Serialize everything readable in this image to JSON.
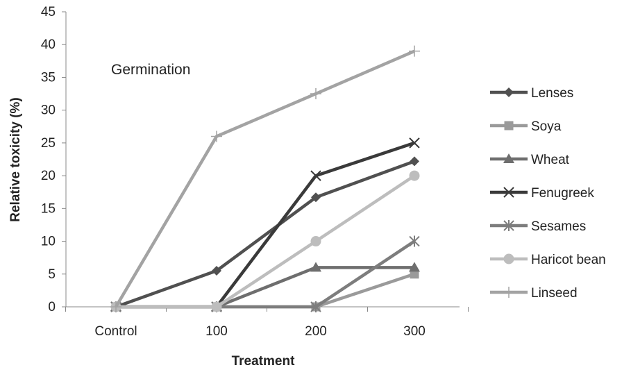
{
  "chart_data": {
    "type": "line",
    "title": "",
    "annotation": "Germination",
    "xlabel": "Treatment",
    "ylabel": "Relative toxicity (%)",
    "categories": [
      "Control",
      "100",
      "200",
      "300"
    ],
    "ylim": [
      0,
      45
    ],
    "yticks": [
      "0",
      "5",
      "10",
      "15",
      "20",
      "25",
      "30",
      "35",
      "40",
      "45"
    ],
    "grid": false,
    "legend_position": "right",
    "series": [
      {
        "name": "Lenses",
        "values": [
          0,
          5.5,
          16.7,
          22.2
        ],
        "color": "#505050",
        "marker": "diamond"
      },
      {
        "name": "Soya",
        "values": [
          0,
          0,
          0,
          5
        ],
        "color": "#9a9a9a",
        "marker": "square"
      },
      {
        "name": "Wheat",
        "values": [
          0,
          0,
          6,
          6
        ],
        "color": "#6e6e6e",
        "marker": "triangle"
      },
      {
        "name": "Fenugreek",
        "values": [
          0,
          0,
          20,
          25
        ],
        "color": "#3a3a3a",
        "marker": "x"
      },
      {
        "name": "Sesames",
        "values": [
          0,
          0,
          0,
          10
        ],
        "color": "#7d7d7d",
        "marker": "asterisk"
      },
      {
        "name": "Haricot bean",
        "values": [
          0,
          0,
          10,
          20
        ],
        "color": "#bdbdbd",
        "marker": "circle"
      },
      {
        "name": "Linseed",
        "values": [
          0,
          26,
          32.5,
          39
        ],
        "color": "#a3a3a3",
        "marker": "plus"
      }
    ]
  }
}
